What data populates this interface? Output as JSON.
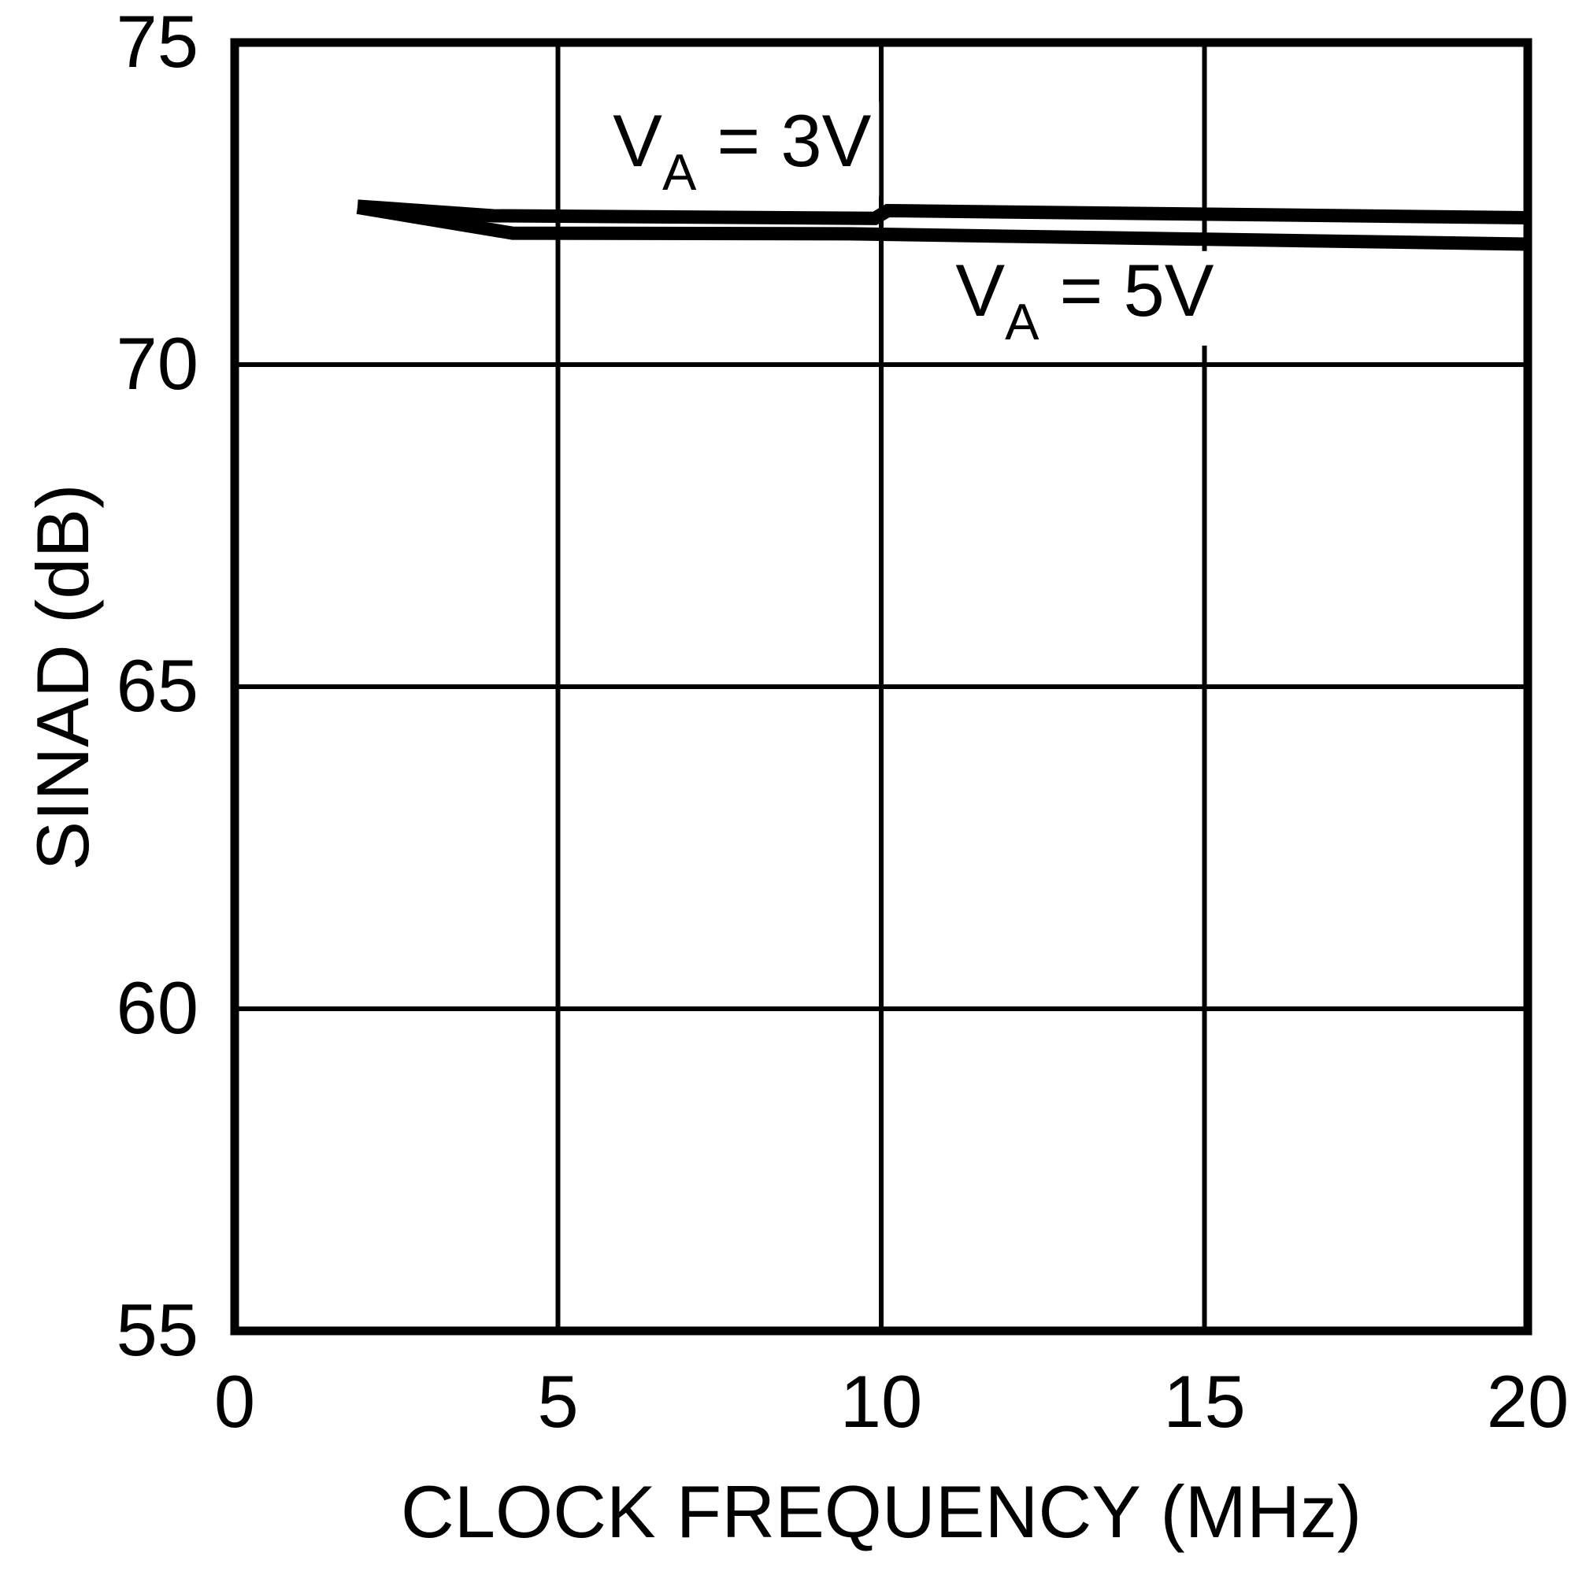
{
  "colors": {
    "ink": "#000000",
    "paper": "#ffffff"
  },
  "chart_data": {
    "type": "line",
    "title": "",
    "xlabel": "CLOCK FREQUENCY (MHz)",
    "ylabel": "SINAD (dB)",
    "xlim": [
      0,
      20
    ],
    "ylim": [
      55,
      75
    ],
    "xticks": [
      0,
      5,
      10,
      15,
      20
    ],
    "xtick_labels": [
      "0",
      "5",
      "10",
      "15",
      "20"
    ],
    "yticks": [
      75,
      70,
      65,
      60,
      55
    ],
    "ytick_labels": [
      "75",
      "70",
      "65",
      "60",
      "55"
    ],
    "grid": true,
    "gridlines": {
      "x": [
        5,
        10,
        15
      ],
      "y": [
        70,
        65,
        60
      ]
    },
    "legend_position": "none",
    "series": [
      {
        "name": "VA = 3V",
        "label_parts": {
          "base": "V",
          "sub": "A",
          "eq": "= 3V"
        },
        "label_anchor": {
          "x": 5.85,
          "y": 73.08
        },
        "points": [
          [
            1.9,
            72.46
          ],
          [
            4,
            72.31
          ],
          [
            9.9,
            72.27
          ],
          [
            10.1,
            72.39
          ],
          [
            20,
            72.28
          ]
        ]
      },
      {
        "name": "VA = 5V",
        "label_parts": {
          "base": "V",
          "sub": "A",
          "eq": "= 5V"
        },
        "label_anchor": {
          "x": 11.15,
          "y": 70.76
        },
        "points": [
          [
            1.9,
            72.44
          ],
          [
            4.3,
            72.04
          ],
          [
            9.5,
            72.03
          ],
          [
            20,
            71.87
          ]
        ]
      }
    ]
  }
}
